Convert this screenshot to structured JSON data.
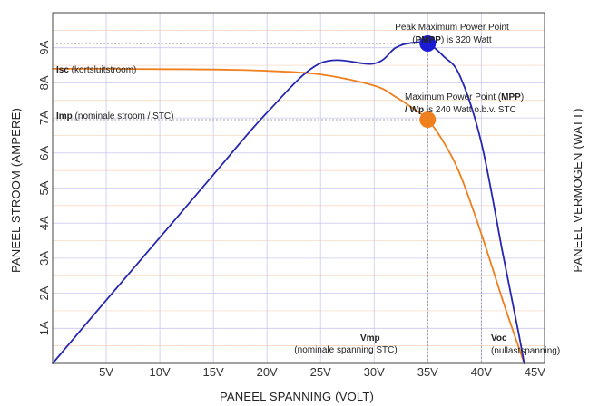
{
  "chart_data": {
    "type": "line",
    "xlabel": "PANEEL SPANNING (VOLT)",
    "ylabel": "PANEEL STROOM (AMPERE)",
    "y2label": "PANEEL VERMOGEN (WATT)",
    "xlim": [
      0,
      45.9
    ],
    "ylim": [
      0,
      10
    ],
    "x_ticks": [
      5,
      10,
      15,
      20,
      25,
      30,
      35,
      40,
      45
    ],
    "x_tick_labels": [
      "5V",
      "10V",
      "15V",
      "20V",
      "25V",
      "30V",
      "35V",
      "40V",
      "45V"
    ],
    "y_ticks": [
      1,
      2,
      3,
      4,
      5,
      6,
      7,
      8,
      9
    ],
    "y_tick_labels": [
      "1A",
      "2A",
      "3A",
      "4A",
      "5A",
      "6A",
      "7A",
      "8A",
      "9A"
    ],
    "grid": true,
    "colors": {
      "current": "#f07f1e",
      "power": "#2626b0",
      "grid": "#c9c9ee",
      "grid_light": "#f6d3b8"
    },
    "series": [
      {
        "key": "current",
        "x": [
          0,
          5,
          10,
          15,
          20,
          25,
          30,
          32,
          33.5,
          35,
          36.5,
          38,
          40,
          42,
          43.5,
          44
        ],
        "values": [
          8.4,
          8.4,
          8.39,
          8.38,
          8.34,
          8.24,
          7.92,
          7.6,
          7.3,
          6.95,
          6.3,
          5.4,
          3.7,
          1.8,
          0.45,
          0
        ]
      },
      {
        "key": "power",
        "x": [
          0,
          5,
          10,
          15,
          20,
          25,
          30,
          32,
          33.5,
          35,
          36.5,
          38,
          40,
          42,
          43.5,
          44
        ],
        "values": [
          0,
          1.8,
          3.59,
          5.38,
          7.15,
          8.56,
          8.55,
          9.0,
          9.14,
          9.12,
          8.75,
          8.2,
          6.3,
          3.15,
          0.83,
          0
        ]
      }
    ],
    "points": [
      {
        "key": "pmpp",
        "x": 35,
        "y": 9.12
      },
      {
        "key": "mpp",
        "x": 35,
        "y": 6.95
      }
    ],
    "annotations": {
      "isc": {
        "bold": "Isc",
        "text": " (kortsluitstroom)"
      },
      "imp": {
        "bold": "Imp",
        "text": " (nominale stroom / STC)"
      },
      "pmpp_line1": "Peak Maximum Power Point",
      "pmpp_line2_pre": "(",
      "pmpp_line2_bold": "PMPP",
      "pmpp_line2_post": ") is 320 Watt",
      "mpp_line1_pre": "Maximum Power Point (",
      "mpp_line1_bold": "MPP",
      "mpp_line1_post": ")",
      "mpp_line2_bold": "/ Wp",
      "mpp_line2_post": " is 240 Watt o.b.v. STC",
      "vmp_bold": "Vmp",
      "vmp_text": "(nominale spanning STC)",
      "voc_bold": "Voc",
      "voc_text": "(nullastspanning)"
    }
  }
}
